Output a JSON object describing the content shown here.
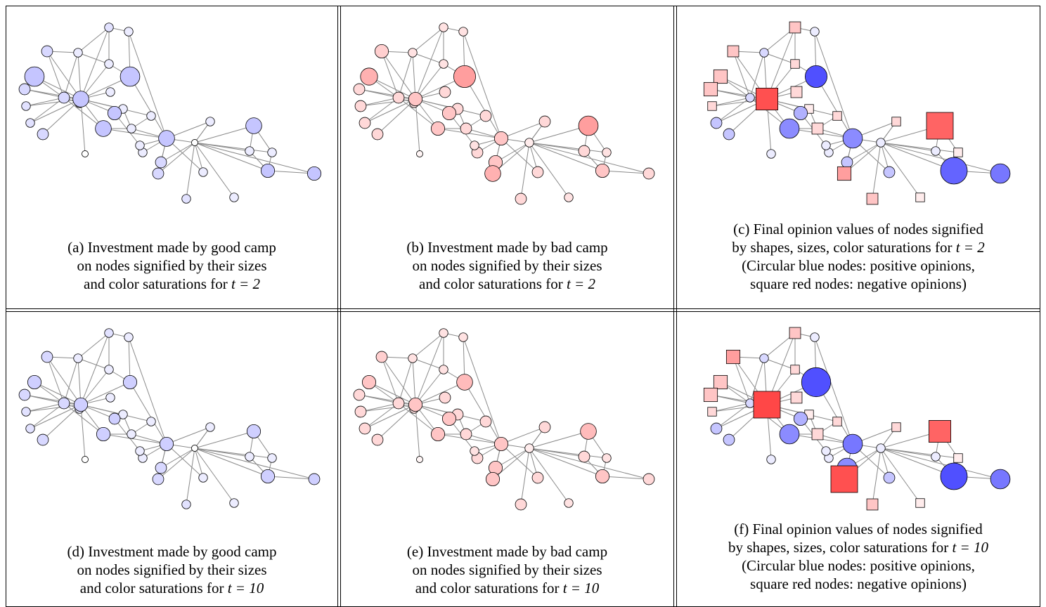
{
  "colors": {
    "good": "#3d3dff",
    "bad": "#ff3d3d",
    "edge": "#8a8a8a",
    "stroke": "#000000"
  },
  "panels": [
    {
      "id": "a",
      "kind": "good",
      "t": "2",
      "caption_lines": [
        "(a) Investment made by good camp",
        "on nodes signified by their sizes",
        "and color saturations for $t = 2$"
      ],
      "sizes": [
        14,
        7,
        5,
        5,
        7,
        7,
        7,
        5,
        5,
        3,
        5,
        5,
        5,
        14,
        11,
        5,
        5,
        11,
        5,
        5,
        11,
        5,
        7,
        7,
        3,
        5,
        5,
        5,
        11,
        5,
        9,
        5,
        5,
        9,
        9,
        5
      ],
      "sat": [
        0.3,
        0.2,
        0.15,
        0.15,
        0.2,
        0.2,
        0.2,
        0.1,
        0.1,
        0,
        0.15,
        0.1,
        0.1,
        0.3,
        0.3,
        0.1,
        0.1,
        0.3,
        0.1,
        0.1,
        0.3,
        0.1,
        0.2,
        0.2,
        0,
        0.15,
        0.1,
        0.1,
        0.3,
        0.1,
        0.3,
        0.1,
        0.1,
        0.3,
        0.3,
        0.1
      ],
      "opinion": []
    },
    {
      "id": "b",
      "kind": "bad",
      "t": "2",
      "caption_lines": [
        "(b) Investment made by bad camp",
        "on nodes signified by their sizes",
        "and color saturations for $t = 2$"
      ],
      "sizes": [
        12,
        7,
        7,
        7,
        7,
        9,
        7,
        5,
        5,
        3,
        5,
        5,
        5,
        16,
        9,
        7,
        7,
        9,
        7,
        7,
        9,
        7,
        9,
        11,
        5,
        7,
        7,
        7,
        14,
        7,
        9,
        5,
        5,
        7,
        9,
        5
      ],
      "sat": [
        0.4,
        0.2,
        0.2,
        0.2,
        0.2,
        0.25,
        0.2,
        0.15,
        0.15,
        0.05,
        0.15,
        0.15,
        0.15,
        0.5,
        0.3,
        0.2,
        0.2,
        0.3,
        0.2,
        0.2,
        0.3,
        0.2,
        0.3,
        0.4,
        0.1,
        0.2,
        0.2,
        0.2,
        0.5,
        0.2,
        0.3,
        0.15,
        0.15,
        0.2,
        0.3,
        0.15
      ],
      "opinion": []
    },
    {
      "id": "c",
      "kind": "opinion",
      "t": "2",
      "caption_lines": [
        "(c) Final opinion values of nodes signified",
        "by shapes, sizes, color saturations for $t = 2$",
        "(Circular blue nodes: positive opinions,",
        "square red nodes: negative opinions)"
      ],
      "sizes": [
        9,
        9,
        5,
        7,
        7,
        7,
        5,
        5,
        5,
        5,
        7,
        5,
        5,
        16,
        16,
        7,
        5,
        14,
        7,
        5,
        14,
        5,
        7,
        9,
        5,
        7,
        7,
        5,
        20,
        5,
        20,
        5,
        5,
        14,
        9,
        5
      ],
      "sat": [
        0.3,
        0.3,
        0.2,
        0.3,
        0.3,
        0.3,
        0.2,
        0.2,
        0.2,
        0.1,
        0.3,
        0.1,
        0.2,
        0.9,
        0.9,
        0.2,
        0.1,
        0.6,
        0.2,
        0.1,
        0.6,
        0.2,
        0.3,
        0.5,
        0.1,
        0.3,
        0.3,
        0.2,
        0.8,
        0.1,
        0.8,
        0.1,
        0.1,
        0.7,
        0.4,
        0.1
      ],
      "opinion": [
        -1,
        -1,
        -1,
        1,
        1,
        -1,
        1,
        1,
        -1,
        1,
        -1,
        1,
        -1,
        1,
        -1,
        -1,
        -1,
        1,
        -1,
        1,
        1,
        -1,
        1,
        -1,
        1,
        -1,
        1,
        -1,
        -1,
        1,
        1,
        -1,
        -1,
        1,
        1,
        1
      ]
    },
    {
      "id": "d",
      "kind": "good",
      "t": "10",
      "caption_lines": [
        "(d) Investment made by good camp",
        "on nodes signified by their sizes",
        "and color saturations for $t = 10$"
      ],
      "sizes": [
        9,
        7,
        5,
        5,
        7,
        7,
        7,
        5,
        5,
        3,
        5,
        5,
        5,
        9,
        9,
        5,
        5,
        9,
        5,
        5,
        9,
        5,
        7,
        7,
        3,
        5,
        5,
        5,
        9,
        5,
        9,
        5,
        5,
        7,
        7,
        5
      ],
      "sat": [
        0.25,
        0.2,
        0.15,
        0.15,
        0.2,
        0.2,
        0.2,
        0.1,
        0.1,
        0,
        0.15,
        0.1,
        0.1,
        0.25,
        0.25,
        0.1,
        0.1,
        0.25,
        0.1,
        0.1,
        0.25,
        0.1,
        0.2,
        0.2,
        0,
        0.15,
        0.1,
        0.1,
        0.25,
        0.1,
        0.25,
        0.1,
        0.1,
        0.25,
        0.25,
        0.1
      ],
      "opinion": []
    },
    {
      "id": "e",
      "kind": "bad",
      "t": "10",
      "caption_lines": [
        "(e) Investment made by bad camp",
        "on nodes signified by their sizes",
        "and color saturations for $t = 10$"
      ],
      "sizes": [
        9,
        7,
        7,
        7,
        7,
        7,
        7,
        5,
        5,
        3,
        5,
        5,
        5,
        11,
        9,
        7,
        7,
        9,
        7,
        7,
        9,
        7,
        9,
        9,
        5,
        7,
        7,
        7,
        11,
        7,
        9,
        5,
        5,
        7,
        9,
        5
      ],
      "sat": [
        0.3,
        0.2,
        0.2,
        0.2,
        0.2,
        0.25,
        0.2,
        0.15,
        0.15,
        0.05,
        0.15,
        0.15,
        0.15,
        0.35,
        0.3,
        0.2,
        0.2,
        0.3,
        0.2,
        0.2,
        0.3,
        0.2,
        0.3,
        0.3,
        0.1,
        0.2,
        0.2,
        0.2,
        0.35,
        0.2,
        0.3,
        0.15,
        0.15,
        0.2,
        0.3,
        0.15
      ],
      "opinion": []
    },
    {
      "id": "f",
      "kind": "opinion",
      "t": "10",
      "caption_lines": [
        "(f) Final opinion values of nodes signified",
        "by shapes, sizes, color saturations for $t = 10$",
        "(Circular blue nodes: positive opinions,",
        "square red nodes: negative opinions)"
      ],
      "sizes": [
        9,
        9,
        5,
        7,
        7,
        9,
        5,
        5,
        5,
        5,
        7,
        5,
        5,
        22,
        20,
        7,
        5,
        14,
        7,
        5,
        14,
        5,
        14,
        20,
        5,
        7,
        7,
        5,
        16,
        5,
        20,
        5,
        5,
        14,
        9,
        5
      ],
      "sat": [
        0.3,
        0.3,
        0.2,
        0.3,
        0.3,
        0.5,
        0.2,
        0.2,
        0.2,
        0.1,
        0.3,
        0.1,
        0.2,
        0.9,
        0.95,
        0.2,
        0.1,
        0.6,
        0.2,
        0.1,
        0.7,
        0.2,
        0.6,
        0.9,
        0.1,
        0.3,
        0.3,
        0.2,
        0.8,
        0.1,
        0.9,
        0.1,
        0.1,
        0.7,
        0.4,
        0.1
      ],
      "opinion": [
        -1,
        -1,
        -1,
        1,
        1,
        -1,
        1,
        1,
        -1,
        1,
        -1,
        1,
        -1,
        1,
        -1,
        -1,
        -1,
        1,
        -1,
        1,
        1,
        -1,
        1,
        -1,
        1,
        -1,
        1,
        -1,
        -1,
        1,
        1,
        -1,
        -1,
        1,
        1,
        1
      ]
    }
  ]
}
